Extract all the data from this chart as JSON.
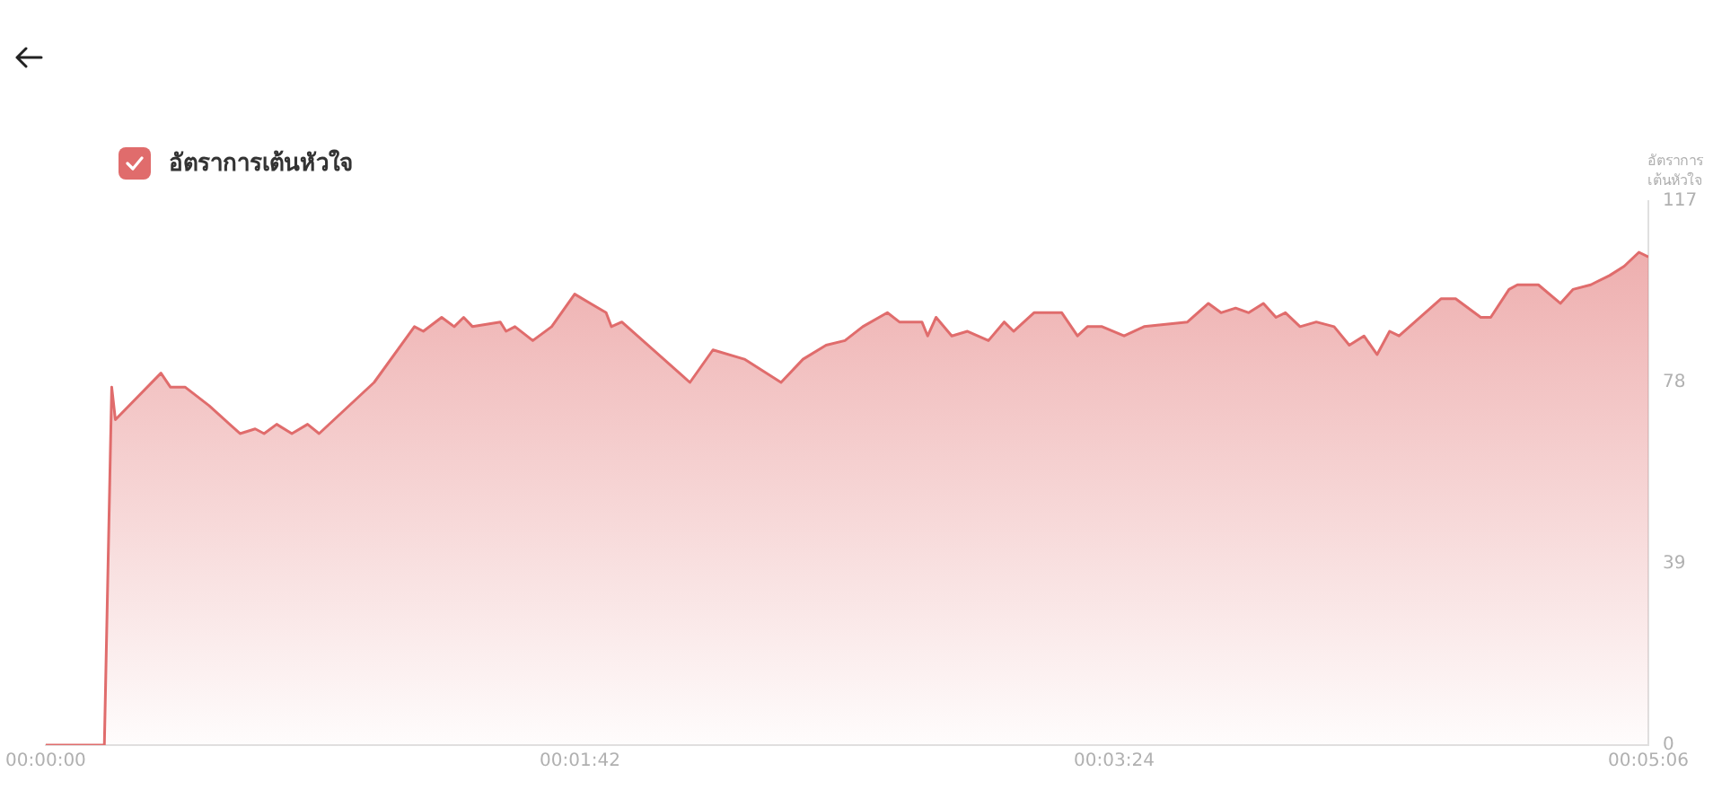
{
  "chart_data": {
    "type": "area",
    "ylabel": "อัตราการเต้นหัวใจ",
    "legend": "top left",
    "grid": false,
    "marker": "none",
    "line_style": "solid",
    "xlim": [
      0,
      306
    ],
    "xticks": [
      {
        "value": 0,
        "label": "00:00:00"
      },
      {
        "value": 102,
        "label": "00:01:42"
      },
      {
        "value": 204,
        "label": "00:03:24"
      },
      {
        "value": 306,
        "label": "00:05:06"
      }
    ],
    "ylim": [
      0,
      117
    ],
    "yticks": [
      0,
      39,
      78,
      117
    ],
    "x": [
      0,
      11.2,
      12.6,
      13.3,
      22,
      23.8,
      26.6,
      31.2,
      37.1,
      40,
      41.7,
      44.1,
      47,
      50,
      52.2,
      62.7,
      70.4,
      72.1,
      75.6,
      78,
      79.8,
      81.5,
      86.8,
      87.9,
      89.6,
      93,
      96.6,
      101,
      104,
      107,
      108,
      110,
      123,
      127.4,
      133.4,
      140.4,
      144.6,
      149,
      152.6,
      156,
      160.7,
      163,
      167.3,
      168.4,
      170,
      173,
      176,
      180,
      183,
      184.8,
      188.7,
      194,
      197,
      198.9,
      201.7,
      205.9,
      209.7,
      218,
      222,
      224.4,
      227.2,
      229.7,
      232.5,
      234.9,
      236.7,
      239.5,
      242.6,
      246,
      248.9,
      251.7,
      254.2,
      256.6,
      258.4,
      266.4,
      269.2,
      274,
      275.9,
      279.4,
      281,
      285,
      289.2,
      291.6,
      295,
      298.6,
      301.4,
      304.2,
      306
    ],
    "series": [
      {
        "name": "อัตราการเต้นหัวใจ",
        "color": "#e06c6c",
        "values": [
          0,
          0,
          77,
          70,
          80,
          77,
          77,
          73,
          67,
          68,
          67,
          69,
          67,
          69,
          67,
          78,
          90,
          89,
          92,
          90,
          92,
          90,
          91,
          89,
          90,
          87,
          90,
          97,
          95,
          93,
          90,
          91,
          78,
          85,
          83,
          78,
          83,
          86,
          87,
          90,
          93,
          91,
          91,
          88,
          92,
          88,
          89,
          87,
          91,
          89,
          93,
          93,
          88,
          90,
          90,
          88,
          90,
          91,
          95,
          93,
          94,
          93,
          95,
          92,
          93,
          90,
          91,
          90,
          86,
          88,
          84,
          89,
          88,
          96,
          96,
          92,
          92,
          98,
          99,
          99,
          95,
          98,
          99,
          101,
          103,
          106,
          105
        ]
      }
    ]
  }
}
